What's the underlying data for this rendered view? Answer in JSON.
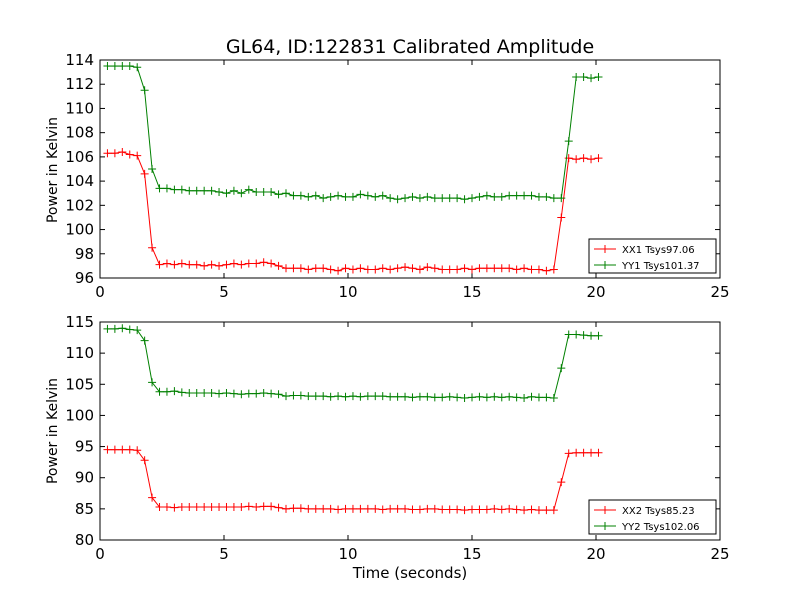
{
  "figure": {
    "title": "GL64, ID:122831 Calibrated Amplitude"
  },
  "chart_data": [
    {
      "type": "line",
      "title": "GL64, ID:122831 Calibrated Amplitude",
      "xlabel": "",
      "ylabel": "Power in Kelvin",
      "xlim": [
        0,
        25
      ],
      "ylim": [
        96,
        114
      ],
      "xticks": [
        0,
        5,
        10,
        15,
        20,
        25
      ],
      "yticks": [
        96,
        98,
        100,
        102,
        104,
        106,
        108,
        110,
        112,
        114
      ],
      "grid": false,
      "legend": "lower-right",
      "series": [
        {
          "name": "XX1 Tsys97.06",
          "color": "#ff0000",
          "marker": "plus",
          "x": [
            0.3,
            0.6,
            0.9,
            1.2,
            1.5,
            1.8,
            2.1,
            2.4,
            2.7,
            3.0,
            3.3,
            3.6,
            3.9,
            4.2,
            4.5,
            4.8,
            5.1,
            5.4,
            5.7,
            6.0,
            6.3,
            6.6,
            6.9,
            7.2,
            7.5,
            7.8,
            8.1,
            8.4,
            8.7,
            9.0,
            9.3,
            9.6,
            9.9,
            10.2,
            10.5,
            10.8,
            11.1,
            11.4,
            11.7,
            12.0,
            12.3,
            12.6,
            12.9,
            13.2,
            13.5,
            13.8,
            14.1,
            14.4,
            14.7,
            15.0,
            15.3,
            15.6,
            15.9,
            16.2,
            16.5,
            16.8,
            17.1,
            17.4,
            17.7,
            18.0,
            18.3,
            18.6,
            18.9,
            19.2,
            19.5,
            19.8,
            20.1
          ],
          "y": [
            106.3,
            106.3,
            106.4,
            106.2,
            106.1,
            104.6,
            98.5,
            97.1,
            97.2,
            97.1,
            97.2,
            97.1,
            97.1,
            97.0,
            97.1,
            97.0,
            97.1,
            97.2,
            97.1,
            97.2,
            97.2,
            97.3,
            97.2,
            97.0,
            96.8,
            96.8,
            96.8,
            96.7,
            96.8,
            96.8,
            96.7,
            96.6,
            96.8,
            96.7,
            96.8,
            96.7,
            96.7,
            96.8,
            96.7,
            96.8,
            96.9,
            96.8,
            96.7,
            96.9,
            96.8,
            96.7,
            96.7,
            96.7,
            96.8,
            96.7,
            96.8,
            96.8,
            96.8,
            96.8,
            96.8,
            96.7,
            96.8,
            96.7,
            96.7,
            96.6,
            96.7,
            101.0,
            105.9,
            105.8,
            105.9,
            105.8,
            105.9
          ]
        },
        {
          "name": "YY1 Tsys101.37",
          "color": "#008000",
          "marker": "plus",
          "x": [
            0.3,
            0.6,
            0.9,
            1.2,
            1.5,
            1.8,
            2.1,
            2.4,
            2.7,
            3.0,
            3.3,
            3.6,
            3.9,
            4.2,
            4.5,
            4.8,
            5.1,
            5.4,
            5.7,
            6.0,
            6.3,
            6.6,
            6.9,
            7.2,
            7.5,
            7.8,
            8.1,
            8.4,
            8.7,
            9.0,
            9.3,
            9.6,
            9.9,
            10.2,
            10.5,
            10.8,
            11.1,
            11.4,
            11.7,
            12.0,
            12.3,
            12.6,
            12.9,
            13.2,
            13.5,
            13.8,
            14.1,
            14.4,
            14.7,
            15.0,
            15.3,
            15.6,
            15.9,
            16.2,
            16.5,
            16.8,
            17.1,
            17.4,
            17.7,
            18.0,
            18.3,
            18.6,
            18.9,
            19.2,
            19.5,
            19.8,
            20.1
          ],
          "y": [
            113.5,
            113.5,
            113.5,
            113.5,
            113.4,
            111.5,
            105.0,
            103.4,
            103.4,
            103.3,
            103.3,
            103.2,
            103.2,
            103.2,
            103.2,
            103.1,
            103.0,
            103.2,
            103.0,
            103.3,
            103.1,
            103.1,
            103.1,
            102.9,
            103.0,
            102.8,
            102.8,
            102.7,
            102.8,
            102.6,
            102.7,
            102.8,
            102.7,
            102.7,
            102.9,
            102.8,
            102.7,
            102.8,
            102.6,
            102.5,
            102.6,
            102.7,
            102.6,
            102.7,
            102.6,
            102.6,
            102.6,
            102.6,
            102.5,
            102.6,
            102.7,
            102.8,
            102.7,
            102.7,
            102.8,
            102.8,
            102.8,
            102.8,
            102.7,
            102.7,
            102.6,
            102.6,
            107.3,
            112.6,
            112.6,
            112.5,
            112.6
          ]
        }
      ]
    },
    {
      "type": "line",
      "title": "",
      "xlabel": "Time (seconds)",
      "ylabel": "Power in Kelvin",
      "xlim": [
        0,
        25
      ],
      "ylim": [
        80,
        115
      ],
      "xticks": [
        0,
        5,
        10,
        15,
        20,
        25
      ],
      "yticks": [
        80,
        85,
        90,
        95,
        100,
        105,
        110,
        115
      ],
      "grid": false,
      "legend": "lower-right",
      "series": [
        {
          "name": "XX2 Tsys85.23",
          "color": "#ff0000",
          "marker": "plus",
          "x": [
            0.3,
            0.6,
            0.9,
            1.2,
            1.5,
            1.8,
            2.1,
            2.4,
            2.7,
            3.0,
            3.3,
            3.6,
            3.9,
            4.2,
            4.5,
            4.8,
            5.1,
            5.4,
            5.7,
            6.0,
            6.3,
            6.6,
            6.9,
            7.2,
            7.5,
            7.8,
            8.1,
            8.4,
            8.7,
            9.0,
            9.3,
            9.6,
            9.9,
            10.2,
            10.5,
            10.8,
            11.1,
            11.4,
            11.7,
            12.0,
            12.3,
            12.6,
            12.9,
            13.2,
            13.5,
            13.8,
            14.1,
            14.4,
            14.7,
            15.0,
            15.3,
            15.6,
            15.9,
            16.2,
            16.5,
            16.8,
            17.1,
            17.4,
            17.7,
            18.0,
            18.3,
            18.6,
            18.9,
            19.2,
            19.5,
            19.8,
            20.1
          ],
          "y": [
            94.5,
            94.5,
            94.5,
            94.5,
            94.4,
            92.8,
            86.8,
            85.3,
            85.3,
            85.2,
            85.3,
            85.3,
            85.3,
            85.3,
            85.3,
            85.3,
            85.3,
            85.3,
            85.3,
            85.4,
            85.3,
            85.4,
            85.4,
            85.2,
            85.0,
            85.1,
            85.1,
            85.0,
            85.0,
            85.0,
            85.0,
            84.9,
            85.0,
            85.0,
            85.0,
            85.0,
            85.0,
            84.9,
            85.0,
            85.0,
            85.0,
            84.9,
            84.9,
            85.0,
            85.0,
            84.9,
            84.9,
            84.9,
            84.8,
            84.9,
            84.9,
            84.9,
            85.0,
            84.9,
            85.0,
            84.9,
            84.8,
            84.9,
            84.8,
            84.8,
            84.8,
            89.3,
            93.9,
            94.0,
            94.0,
            94.0,
            94.0
          ]
        },
        {
          "name": "YY2 Tsys102.06",
          "color": "#008000",
          "marker": "plus",
          "x": [
            0.3,
            0.6,
            0.9,
            1.2,
            1.5,
            1.8,
            2.1,
            2.4,
            2.7,
            3.0,
            3.3,
            3.6,
            3.9,
            4.2,
            4.5,
            4.8,
            5.1,
            5.4,
            5.7,
            6.0,
            6.3,
            6.6,
            6.9,
            7.2,
            7.5,
            7.8,
            8.1,
            8.4,
            8.7,
            9.0,
            9.3,
            9.6,
            9.9,
            10.2,
            10.5,
            10.8,
            11.1,
            11.4,
            11.7,
            12.0,
            12.3,
            12.6,
            12.9,
            13.2,
            13.5,
            13.8,
            14.1,
            14.4,
            14.7,
            15.0,
            15.3,
            15.6,
            15.9,
            16.2,
            16.5,
            16.8,
            17.1,
            17.4,
            17.7,
            18.0,
            18.3,
            18.6,
            18.9,
            19.2,
            19.5,
            19.8,
            20.1
          ],
          "y": [
            113.9,
            113.9,
            114.0,
            113.8,
            113.7,
            112.0,
            105.3,
            103.8,
            103.8,
            103.9,
            103.7,
            103.6,
            103.6,
            103.6,
            103.6,
            103.5,
            103.6,
            103.5,
            103.4,
            103.5,
            103.5,
            103.6,
            103.5,
            103.4,
            103.1,
            103.2,
            103.2,
            103.1,
            103.1,
            103.1,
            103.0,
            103.1,
            103.0,
            103.1,
            103.0,
            103.1,
            103.1,
            103.1,
            103.0,
            103.0,
            103.0,
            102.9,
            103.0,
            103.0,
            102.9,
            102.9,
            103.0,
            102.9,
            102.8,
            102.9,
            103.0,
            102.9,
            103.0,
            102.9,
            103.0,
            102.9,
            102.8,
            103.0,
            102.9,
            102.9,
            102.8,
            107.6,
            113.0,
            113.0,
            112.9,
            112.8,
            112.8
          ]
        }
      ]
    }
  ]
}
